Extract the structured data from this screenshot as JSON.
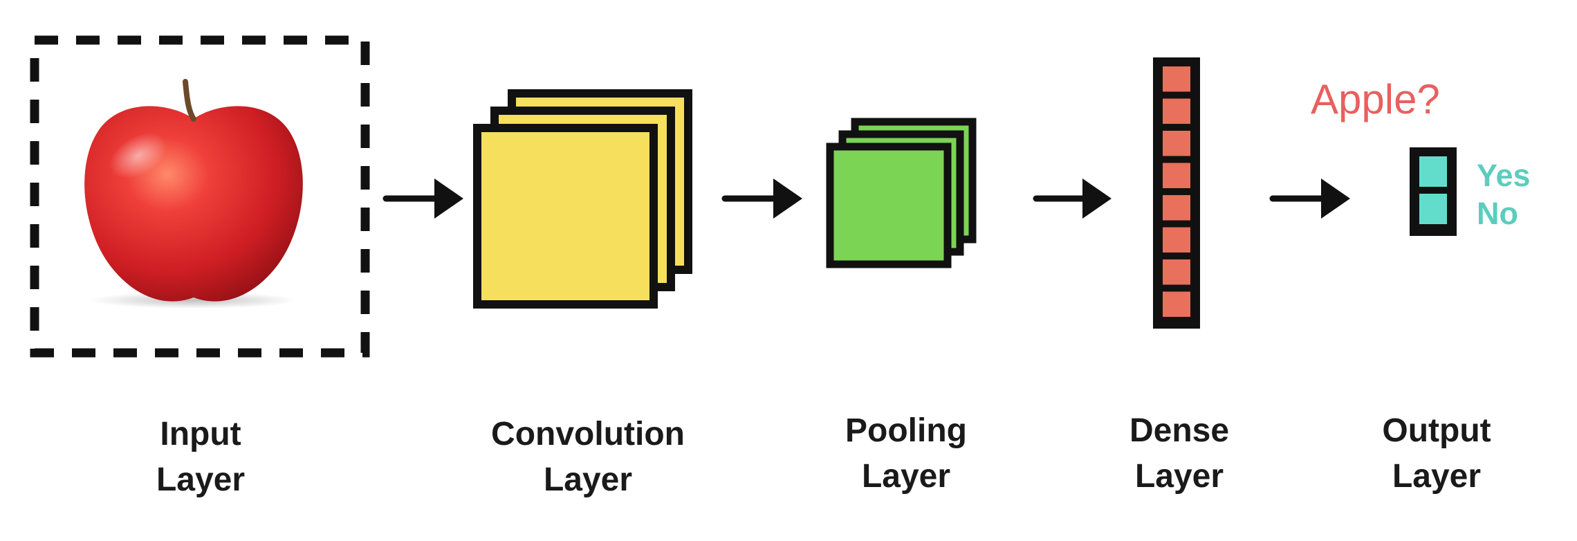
{
  "diagram": {
    "layers": [
      {
        "id": "input",
        "line1": "Input",
        "line2": "Layer"
      },
      {
        "id": "convolution",
        "line1": "Convolution",
        "line2": "Layer"
      },
      {
        "id": "pooling",
        "line1": "Pooling",
        "line2": "Layer"
      },
      {
        "id": "dense",
        "line1": "Dense",
        "line2": "Layer"
      },
      {
        "id": "output",
        "line1": "Output",
        "line2": "Layer"
      }
    ],
    "output": {
      "question": "Apple?",
      "answers": [
        "Yes",
        "No"
      ]
    },
    "dense_units": 8,
    "output_units": 2,
    "convolution_feature_maps": 3,
    "pooling_feature_maps": 3,
    "input_image": "apple",
    "colors": {
      "convolution": "#f6df5c",
      "pooling": "#7cd455",
      "dense": "#e8705c",
      "output": "#62ddcc",
      "question": "#e8605e",
      "answers": "#5ccdbd",
      "outline": "#111111"
    }
  }
}
